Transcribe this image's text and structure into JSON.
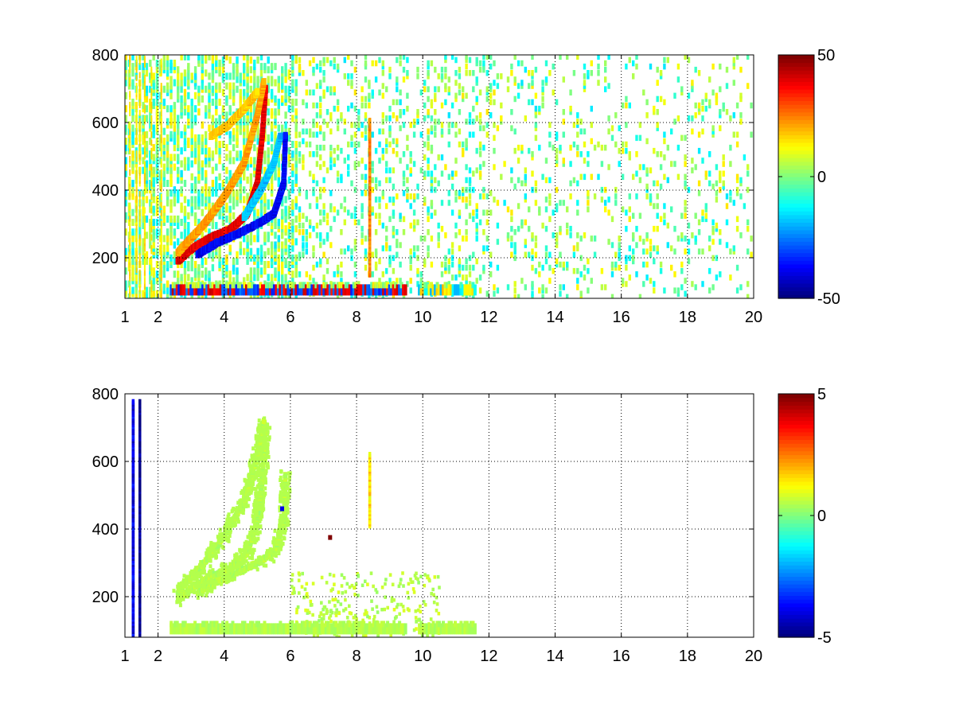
{
  "chart_data": [
    {
      "type": "heatmap",
      "title": "",
      "xlabel": "",
      "ylabel": "",
      "xlim": [
        1,
        20
      ],
      "ylim": [
        80,
        800
      ],
      "grid": true,
      "grid_style": "dotted",
      "xticks": [
        1,
        2,
        4,
        6,
        8,
        10,
        12,
        14,
        16,
        18,
        20
      ],
      "yticks": [
        200,
        400,
        600,
        800
      ],
      "colormap": "jet",
      "colorbar": {
        "min": -50,
        "max": 50,
        "ticks": [
          -50,
          0,
          50
        ]
      },
      "features": [
        {
          "kind": "curve",
          "value": 40,
          "points": [
            [
              2.6,
              190
            ],
            [
              3.0,
              225
            ],
            [
              3.6,
              260
            ],
            [
              4.2,
              285
            ],
            [
              4.7,
              330
            ],
            [
              5.0,
              420
            ],
            [
              5.15,
              560
            ],
            [
              5.25,
              700
            ]
          ]
        },
        {
          "kind": "curve",
          "value": -38,
          "points": [
            [
              3.2,
              210
            ],
            [
              3.8,
              245
            ],
            [
              4.4,
              270
            ],
            [
              5.0,
              300
            ],
            [
              5.5,
              330
            ],
            [
              5.8,
              420
            ],
            [
              5.85,
              560
            ]
          ]
        },
        {
          "kind": "curve",
          "value": 22,
          "points": [
            [
              2.6,
              215
            ],
            [
              3.4,
              300
            ],
            [
              4.0,
              380
            ],
            [
              4.6,
              480
            ],
            [
              5.0,
              620
            ],
            [
              5.2,
              720
            ]
          ]
        },
        {
          "kind": "curve",
          "value": 18,
          "points": [
            [
              3.6,
              560
            ],
            [
              4.1,
              590
            ],
            [
              4.6,
              640
            ],
            [
              5.0,
              690
            ]
          ]
        },
        {
          "kind": "curve",
          "value": -18,
          "points": [
            [
              4.6,
              320
            ],
            [
              5.1,
              400
            ],
            [
              5.5,
              480
            ],
            [
              5.7,
              560
            ]
          ]
        },
        {
          "kind": "band",
          "y": 105,
          "x": [
            2.4,
            9.5
          ],
          "values": [
            40,
            -30
          ]
        },
        {
          "kind": "band",
          "y": 105,
          "x": [
            9.9,
            11.6
          ],
          "values": [
            15,
            -15
          ]
        },
        {
          "kind": "line",
          "x": 8.4,
          "y": [
            150,
            610
          ],
          "value": 25
        },
        {
          "kind": "speckle",
          "x": [
            1,
            20
          ],
          "y": [
            80,
            800
          ],
          "density": "high below x=6, sparse above",
          "values": [
            -15,
            15
          ]
        }
      ]
    },
    {
      "type": "heatmap",
      "title": "",
      "xlabel": "",
      "ylabel": "",
      "xlim": [
        1,
        20
      ],
      "ylim": [
        80,
        800
      ],
      "grid": true,
      "grid_style": "dotted",
      "xticks": [
        1,
        2,
        4,
        6,
        8,
        10,
        12,
        14,
        16,
        18,
        20
      ],
      "yticks": [
        200,
        400,
        600,
        800
      ],
      "colormap": "jet",
      "colorbar": {
        "min": -5,
        "max": 5,
        "ticks": [
          -5,
          0,
          5
        ]
      },
      "features": [
        {
          "kind": "curve",
          "value": 0.5,
          "points": [
            [
              2.6,
              190
            ],
            [
              3.0,
              225
            ],
            [
              3.6,
              260
            ],
            [
              4.2,
              285
            ],
            [
              4.7,
              330
            ],
            [
              5.0,
              420
            ],
            [
              5.15,
              560
            ],
            [
              5.25,
              700
            ]
          ]
        },
        {
          "kind": "curve",
          "value": 0.5,
          "points": [
            [
              3.2,
              210
            ],
            [
              3.8,
              245
            ],
            [
              4.4,
              270
            ],
            [
              5.0,
              300
            ],
            [
              5.5,
              330
            ],
            [
              5.8,
              420
            ],
            [
              5.85,
              560
            ]
          ]
        },
        {
          "kind": "curve",
          "value": 0.5,
          "points": [
            [
              2.6,
              215
            ],
            [
              3.4,
              300
            ],
            [
              4.0,
              380
            ],
            [
              4.6,
              480
            ],
            [
              5.0,
              620
            ],
            [
              5.2,
              720
            ]
          ]
        },
        {
          "kind": "band",
          "y": 105,
          "x": [
            2.4,
            9.5
          ],
          "values": [
            0.5,
            0.5
          ]
        },
        {
          "kind": "band",
          "y": 105,
          "x": [
            9.9,
            11.6
          ],
          "values": [
            0.5,
            0.5
          ]
        },
        {
          "kind": "line",
          "x": 8.4,
          "y": [
            410,
            620
          ],
          "value": 1.5
        },
        {
          "kind": "line",
          "x": 1.45,
          "y": [
            80,
            780
          ],
          "value": -5
        },
        {
          "kind": "line",
          "x": 1.25,
          "y": [
            80,
            780
          ],
          "value": -4
        },
        {
          "kind": "point",
          "x": 7.2,
          "y": 375,
          "value": 5
        },
        {
          "kind": "point",
          "x": 5.75,
          "y": 460,
          "value": -4
        },
        {
          "kind": "speckle",
          "x": [
            6,
            10.5
          ],
          "y": [
            80,
            270
          ],
          "density": "sparse",
          "values": [
            0.2,
            1.0
          ]
        }
      ]
    }
  ]
}
